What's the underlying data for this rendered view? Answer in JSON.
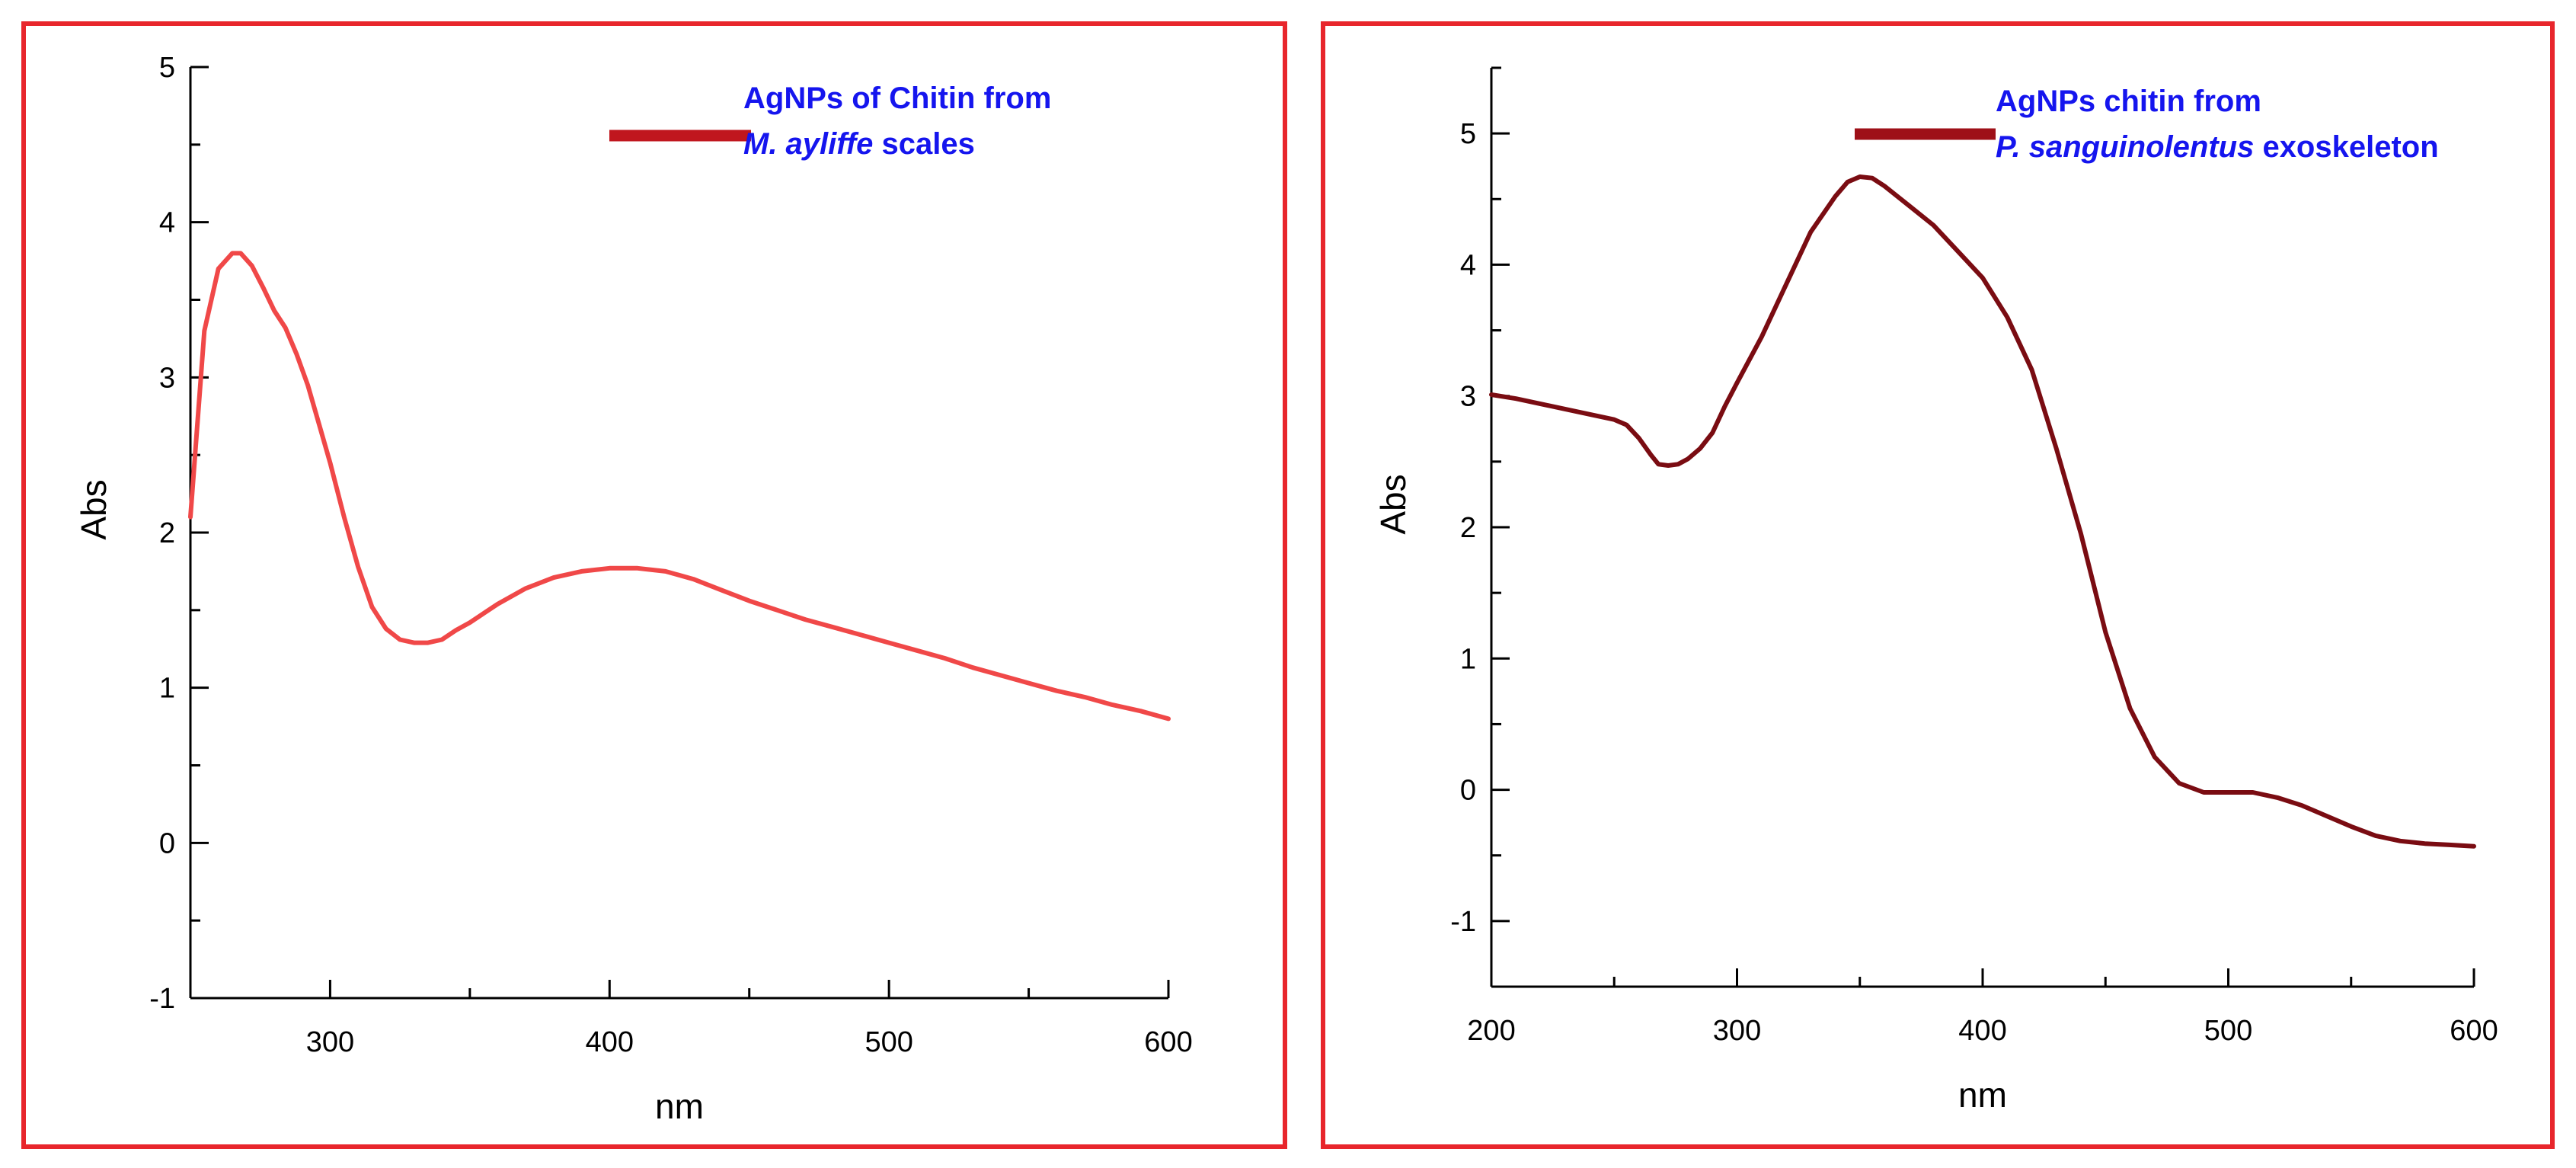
{
  "chart_data": [
    {
      "type": "line",
      "xlabel": "nm",
      "ylabel": "Abs",
      "xlim": [
        250,
        600
      ],
      "ylim": [
        -1,
        5
      ],
      "xticks": [
        300,
        400,
        500,
        600
      ],
      "yticks": [
        -1,
        0,
        1,
        2,
        3,
        4,
        5
      ],
      "grid": false,
      "legend_position": "top-right",
      "series": [
        {
          "name": "AgNPs of Chitin from M. ayliffe scales",
          "name_parts": [
            {
              "text": "AgNPs of Chitin from",
              "italic": false
            },
            {
              "text": "M. ayliffe",
              "italic": true
            },
            {
              "text": " scales",
              "italic": false
            }
          ],
          "color": "#f04848",
          "legend_color": "#c0161e",
          "x": [
            250,
            255,
            260,
            265,
            268,
            272,
            276,
            280,
            284,
            288,
            292,
            296,
            300,
            305,
            310,
            315,
            320,
            325,
            330,
            335,
            340,
            345,
            350,
            360,
            370,
            380,
            390,
            400,
            410,
            420,
            430,
            440,
            450,
            460,
            470,
            480,
            490,
            500,
            510,
            520,
            530,
            540,
            550,
            560,
            570,
            580,
            590,
            600
          ],
          "y": [
            2.1,
            3.3,
            3.7,
            3.8,
            3.8,
            3.72,
            3.58,
            3.43,
            3.32,
            3.15,
            2.95,
            2.7,
            2.45,
            2.1,
            1.78,
            1.52,
            1.38,
            1.31,
            1.29,
            1.29,
            1.31,
            1.37,
            1.42,
            1.54,
            1.64,
            1.71,
            1.75,
            1.77,
            1.77,
            1.75,
            1.7,
            1.63,
            1.56,
            1.5,
            1.44,
            1.39,
            1.34,
            1.29,
            1.24,
            1.19,
            1.13,
            1.08,
            1.03,
            0.98,
            0.94,
            0.89,
            0.85,
            0.8
          ]
        }
      ]
    },
    {
      "type": "line",
      "xlabel": "nm",
      "ylabel": "Abs",
      "xlim": [
        200,
        600
      ],
      "ylim": [
        -1.5,
        5.5
      ],
      "xticks": [
        200,
        300,
        400,
        500,
        600
      ],
      "yticks": [
        -1,
        0,
        1,
        2,
        3,
        4,
        5
      ],
      "grid": false,
      "legend_position": "top-right",
      "series": [
        {
          "name": "AgNPs chitin from P. sanguinolentus exoskeleton",
          "name_parts": [
            {
              "text": "AgNPs chitin from",
              "italic": false
            },
            {
              "text": "P. sanguinolentus",
              "italic": true
            },
            {
              "text": " exoskeleton",
              "italic": false
            }
          ],
          "color": "#7a0c12",
          "legend_color": "#9e1018",
          "x": [
            200,
            210,
            220,
            230,
            240,
            250,
            255,
            260,
            265,
            268,
            272,
            276,
            280,
            285,
            290,
            295,
            300,
            310,
            320,
            330,
            340,
            345,
            350,
            355,
            360,
            370,
            380,
            390,
            400,
            410,
            420,
            430,
            440,
            450,
            460,
            470,
            480,
            490,
            500,
            510,
            520,
            530,
            540,
            550,
            560,
            570,
            580,
            590,
            600
          ],
          "y": [
            3.01,
            2.98,
            2.94,
            2.9,
            2.86,
            2.82,
            2.78,
            2.68,
            2.55,
            2.48,
            2.47,
            2.48,
            2.52,
            2.6,
            2.72,
            2.92,
            3.1,
            3.45,
            3.85,
            4.25,
            4.52,
            4.63,
            4.67,
            4.66,
            4.6,
            4.45,
            4.3,
            4.1,
            3.9,
            3.6,
            3.2,
            2.6,
            1.95,
            1.2,
            0.62,
            0.25,
            0.05,
            -0.02,
            -0.02,
            -0.02,
            -0.06,
            -0.12,
            -0.2,
            -0.28,
            -0.35,
            -0.39,
            -0.41,
            -0.42,
            -0.43
          ]
        }
      ]
    }
  ]
}
